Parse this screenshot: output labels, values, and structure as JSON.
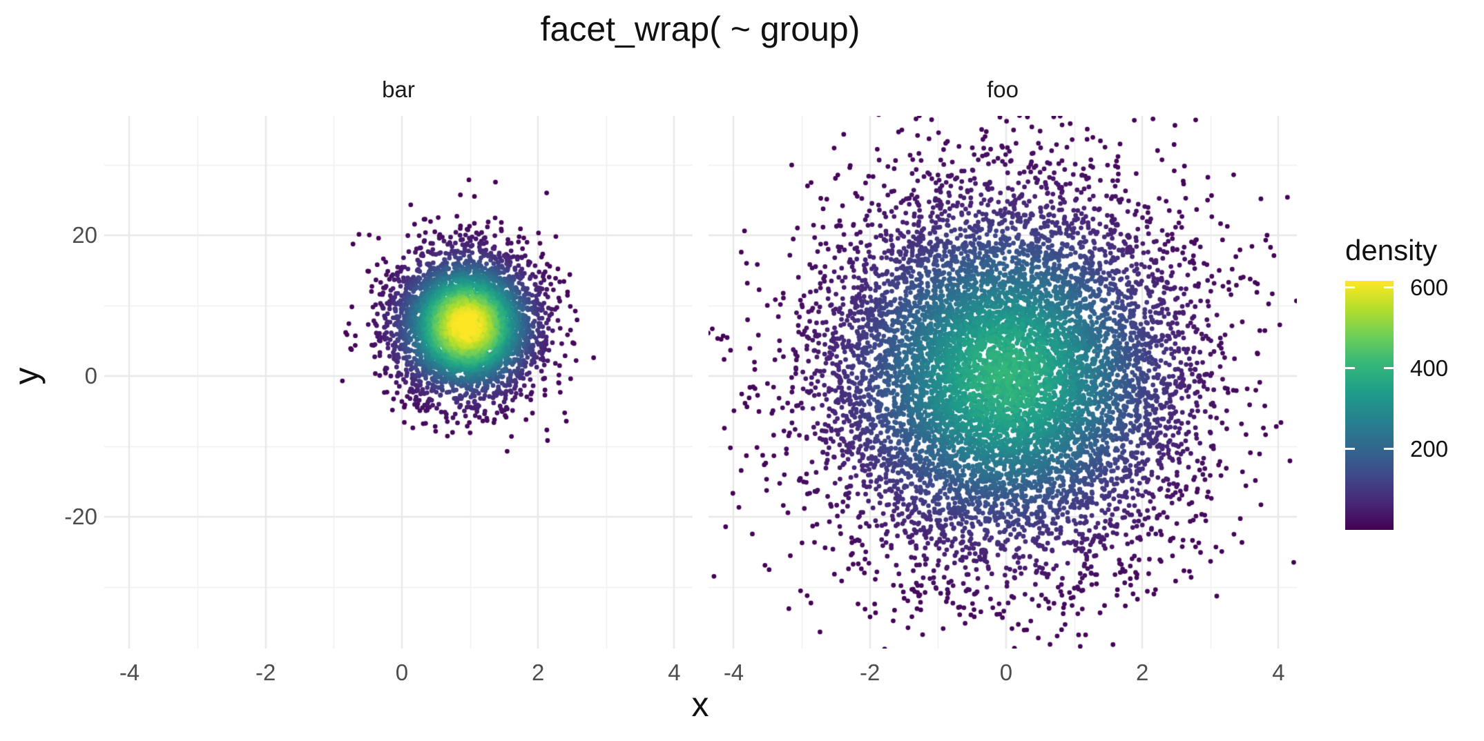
{
  "title": "facet_wrap( ~ group)",
  "xlabel": "x",
  "ylabel": "y",
  "facets": [
    {
      "label": "bar"
    },
    {
      "label": "foo"
    }
  ],
  "legend": {
    "title": "density",
    "tick_values": [
      600,
      400,
      200
    ],
    "domain": [
      0,
      617
    ]
  },
  "axes": {
    "x_major_ticks": [
      -4,
      -2,
      0,
      2,
      4
    ],
    "x_minor_ticks": [
      -3,
      -1,
      1,
      3
    ],
    "y_major_ticks": [
      20,
      0,
      -20
    ],
    "y_minor_ticks": [
      30,
      10,
      -10,
      -30
    ],
    "x_range": [
      -4.37,
      4.27
    ],
    "y_range": [
      -38.73,
      36.96
    ]
  },
  "chart_data": {
    "type": "scatter",
    "subtype": "density-colored-gaussian-clusters",
    "title": "facet_wrap( ~ group)",
    "xlabel": "x",
    "ylabel": "y",
    "grid": true,
    "legend_position": "right",
    "colormap": "viridis",
    "facets": [
      {
        "label": "bar",
        "cluster": {
          "mean_x": 0.95,
          "mean_y": 7.2,
          "sd_x": 0.55,
          "sd_y": 5.3,
          "n_points_rendered": 4200,
          "peak_density": 620,
          "seed": 42
        }
      },
      {
        "label": "foo",
        "cluster": {
          "mean_x": 0.0,
          "mean_y": 0.0,
          "sd_x": 1.35,
          "sd_y": 13.2,
          "n_points_rendered": 9500,
          "peak_density": 390,
          "seed": 7
        }
      }
    ]
  },
  "colors": {
    "background": "#ffffff",
    "grid_major": "#e8e8e8",
    "grid_minor": "#f0f0f0",
    "axis_text": "#4d4d4d",
    "strip_text": "#1a1a1a",
    "title_text": "#111111",
    "viridis_stops": [
      "#440154",
      "#482878",
      "#3e4a89",
      "#31688e",
      "#26828e",
      "#1f9e89",
      "#35b779",
      "#6ece58",
      "#b5de2b",
      "#fde725"
    ]
  }
}
